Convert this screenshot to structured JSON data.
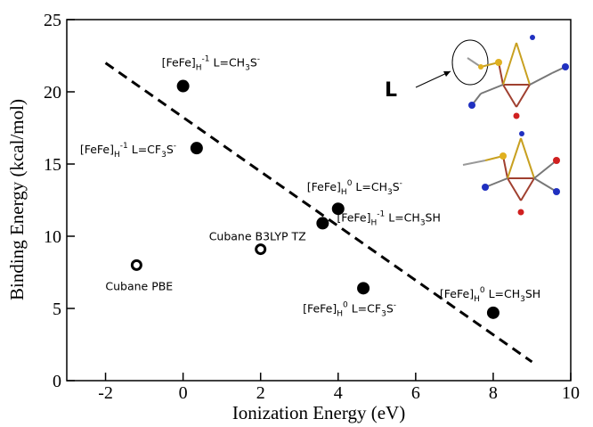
{
  "chart_data": {
    "type": "scatter",
    "xlabel": "Ionization Energy (eV)",
    "ylabel": "Binding Energy (kcal/mol)",
    "xlim": [
      -3,
      10
    ],
    "xticks": [
      -2,
      0,
      2,
      4,
      6,
      8,
      10
    ],
    "ylim": [
      0,
      25
    ],
    "yticks": [
      0,
      5,
      10,
      15,
      20,
      25
    ],
    "color": "#000000",
    "series": [
      {
        "marker": "filled",
        "x": [
          0,
          0.35,
          4,
          3.6,
          4.65,
          8
        ],
        "values": [
          20.4,
          16.1,
          11.9,
          10.9,
          6.4,
          4.7
        ],
        "labels": [
          [
            {
              "t": "[FeFe]"
            },
            {
              "sub": "H"
            },
            {
              "sup": "-1"
            },
            {
              "t": " L=CH"
            },
            {
              "sub": "3"
            },
            {
              "t": "S"
            },
            {
              "sup": "-"
            }
          ],
          [
            {
              "t": "[FeFe]"
            },
            {
              "sub": "H"
            },
            {
              "sup": "-1"
            },
            {
              "t": " L=CF"
            },
            {
              "sub": "3"
            },
            {
              "t": "S"
            },
            {
              "sup": "-"
            }
          ],
          [
            {
              "t": "[FeFe]"
            },
            {
              "sub": "H"
            },
            {
              "sup": "0"
            },
            {
              "t": " L=CH"
            },
            {
              "sub": "3"
            },
            {
              "t": "S"
            },
            {
              "sup": "-"
            }
          ],
          [
            {
              "t": "[FeFe]"
            },
            {
              "sub": "H"
            },
            {
              "sup": "-1"
            },
            {
              "t": " L=CH"
            },
            {
              "sub": "3"
            },
            {
              "t": "SH"
            }
          ],
          [
            {
              "t": "[FeFe]"
            },
            {
              "sub": "H"
            },
            {
              "sup": "0"
            },
            {
              "t": " L=CF"
            },
            {
              "sub": "3"
            },
            {
              "t": "S"
            },
            {
              "sup": "-"
            }
          ],
          [
            {
              "t": "[FeFe]"
            },
            {
              "sub": "H"
            },
            {
              "sup": "0"
            },
            {
              "t": " L=CH"
            },
            {
              "sub": "3"
            },
            {
              "t": "SH"
            }
          ]
        ]
      },
      {
        "marker": "open",
        "x": [
          -1.2,
          2
        ],
        "values": [
          8.0,
          9.1
        ],
        "labels": [
          [
            {
              "t": "Cubane PBE"
            }
          ],
          [
            {
              "t": "Cubane B3LYP TZ"
            }
          ]
        ]
      }
    ],
    "trend": {
      "x": [
        -2,
        9
      ],
      "values": [
        22,
        1.3
      ],
      "dash": true
    },
    "inset_label": "L"
  }
}
